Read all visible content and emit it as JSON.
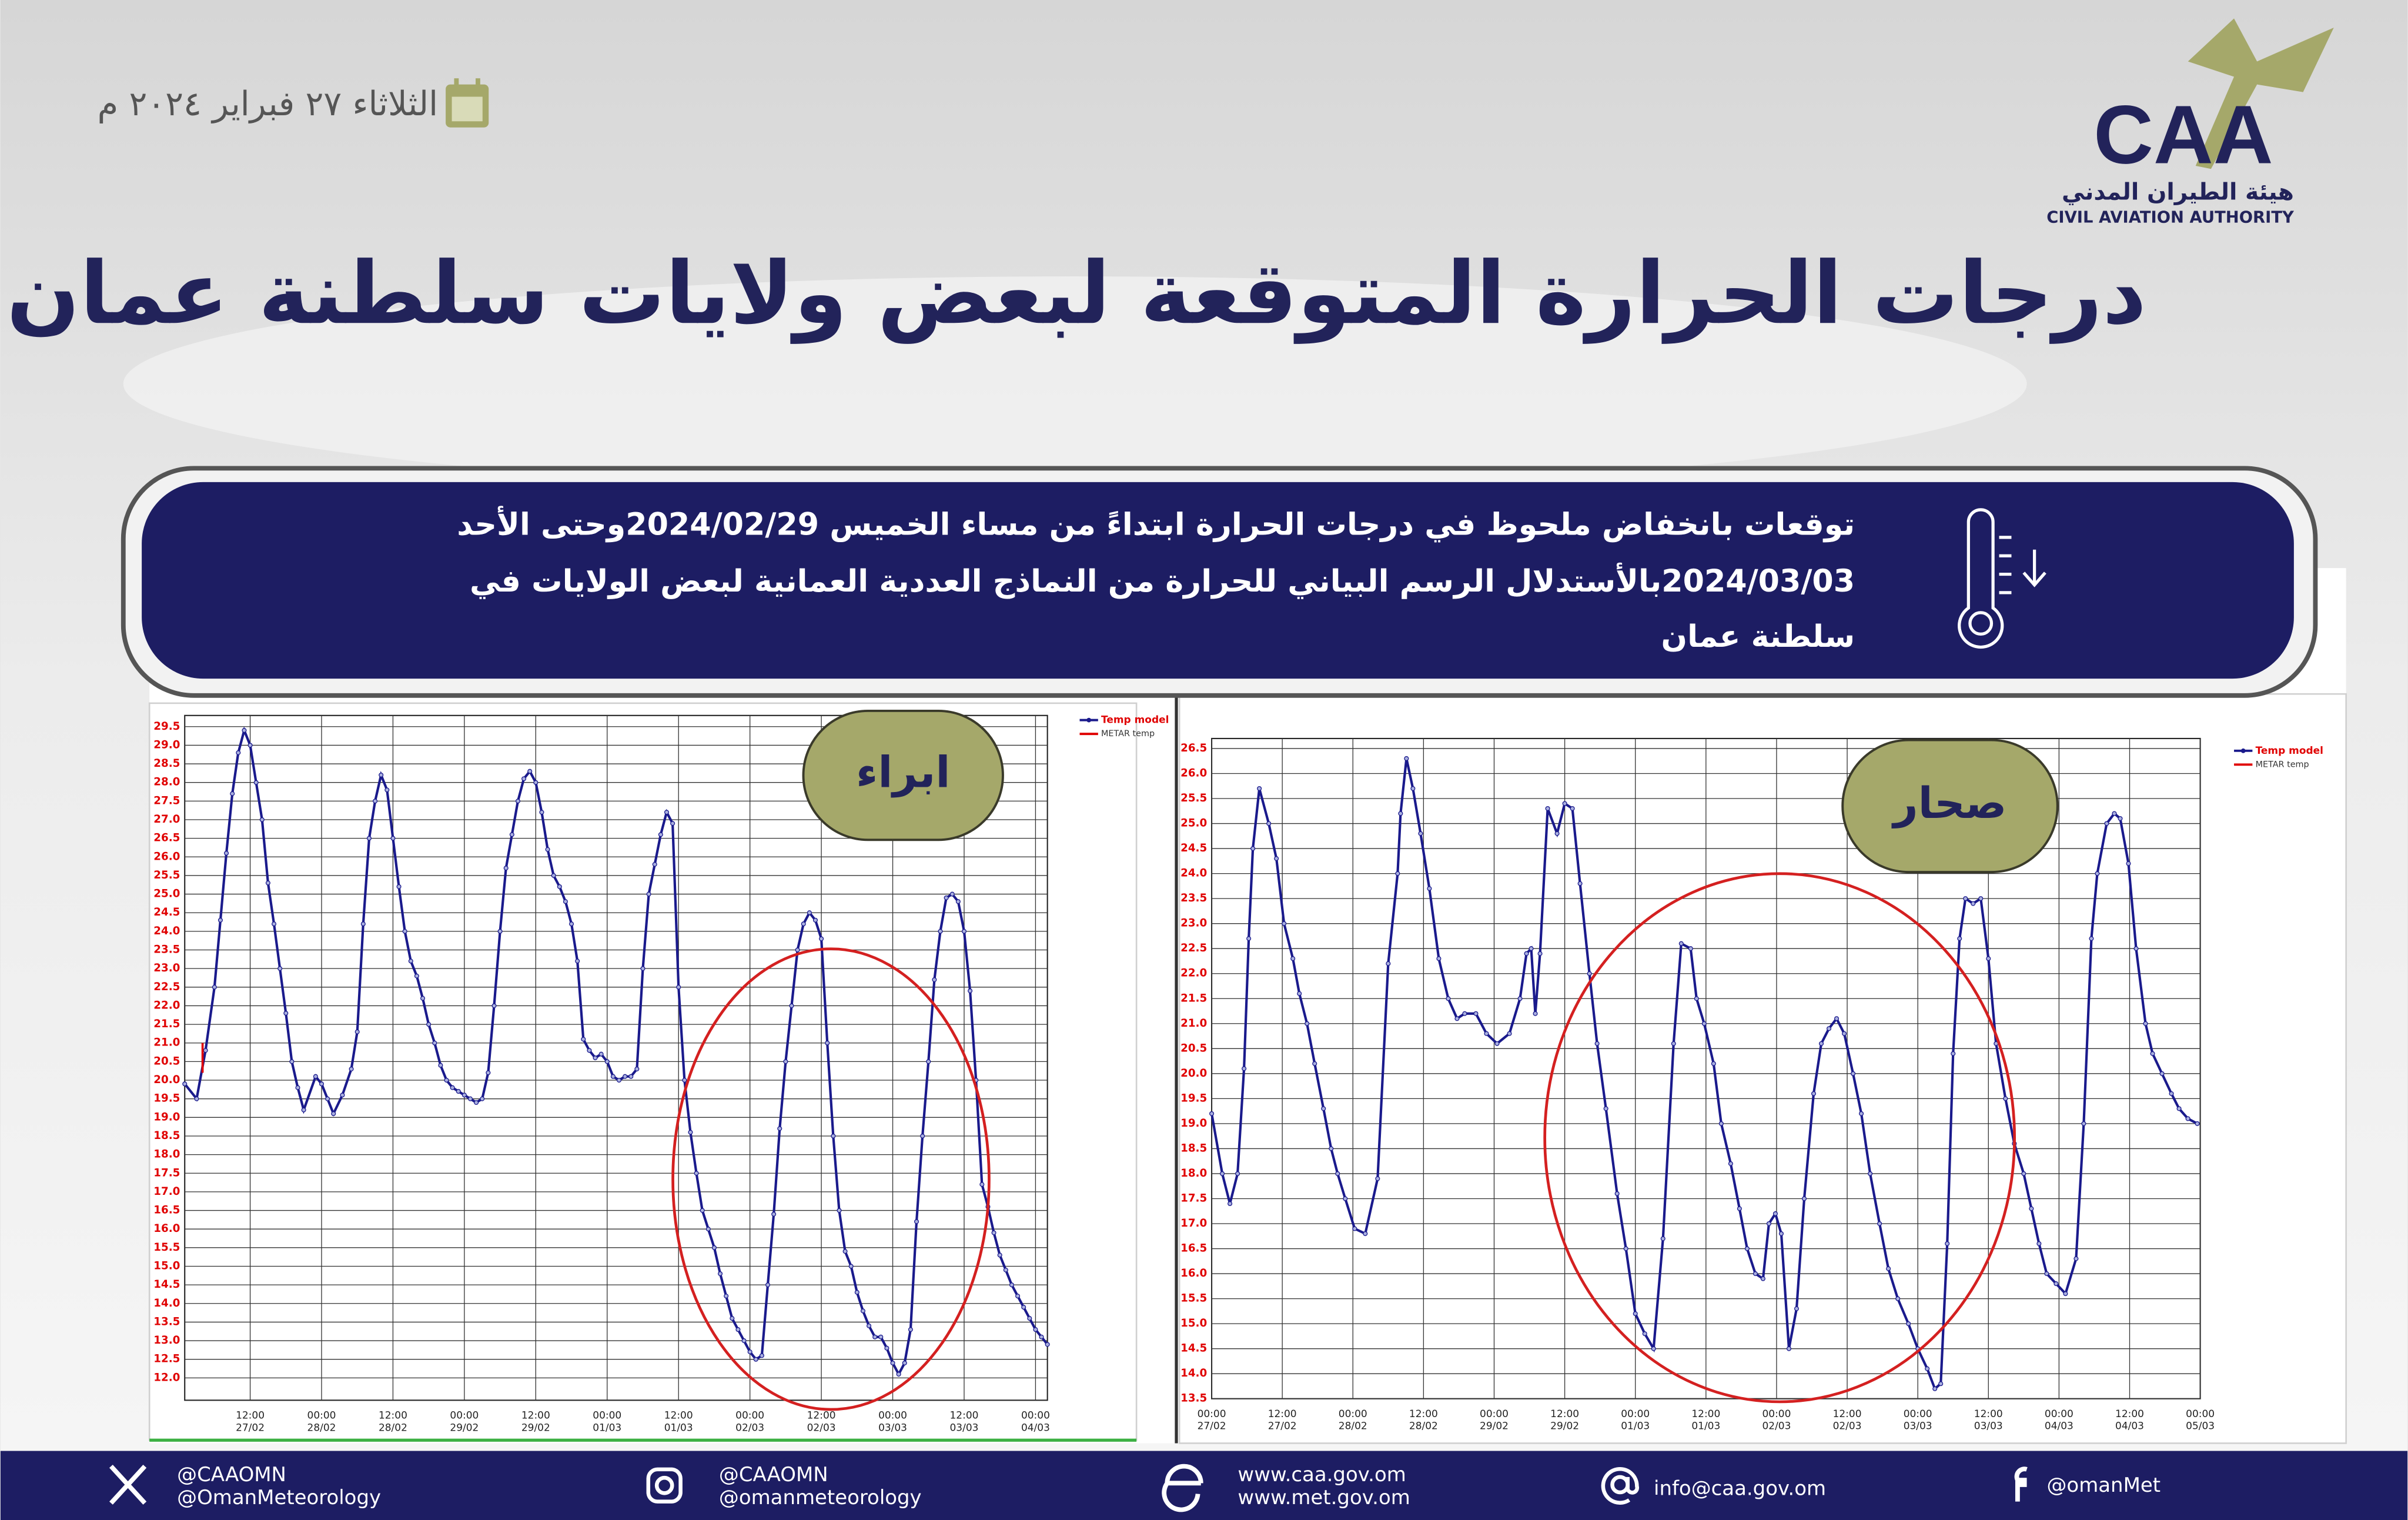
{
  "header": {
    "date": "الثلاثاء ٢٧ فبراير ٢٠٢٤ م",
    "logo": {
      "abbr": "CAA",
      "arabic": "هيئة الطيران المدني",
      "english": "CIVIL AVIATION AUTHORITY"
    },
    "title": "درجات الحرارة المتوقعة لبعض ولايات سلطنة عمان"
  },
  "banner": {
    "lines": [
      "توقعات بانخفاض ملحوظ في درجات الحرارة ابتداءً من مساء الخميس 2024/02/29وحتى الأحد",
      "2024/03/03بالأستدلال الرسم البياني للحرارة من  النماذج العددية العمانية لبعض الولايات في",
      "سلطنة عمان"
    ]
  },
  "chart_data": [
    {
      "type": "line",
      "station": "ابراء",
      "grid": true,
      "xlim": [
        1,
        146
      ],
      "ylim": [
        11.4,
        29.8
      ],
      "xticks": [
        {
          "value": 12,
          "label": "12:00 27/02"
        },
        {
          "value": 24,
          "label": "00:00 28/02"
        },
        {
          "value": 36,
          "label": "12:00 28/02"
        },
        {
          "value": 48,
          "label": "00:00 29/02"
        },
        {
          "value": 60,
          "label": "12:00 29/02"
        },
        {
          "value": 72,
          "label": "00:00 01/03"
        },
        {
          "value": 84,
          "label": "12:00 01/03"
        },
        {
          "value": 96,
          "label": "00:00 02/03"
        },
        {
          "value": 108,
          "label": "12:00 02/03"
        },
        {
          "value": 120,
          "label": "00:00 03/03"
        },
        {
          "value": 132,
          "label": "12:00 03/03"
        },
        {
          "value": 144,
          "label": "00:00 04/03"
        }
      ],
      "yticks": [
        {
          "value": 12,
          "label": "12.0"
        },
        12.5,
        {
          "value": 13,
          "label": "13.0"
        },
        13.5,
        {
          "value": 14,
          "label": "14.0"
        },
        14.5,
        {
          "value": 15,
          "label": "15.0"
        },
        15.5,
        {
          "value": 16,
          "label": "16.0"
        },
        16.5,
        {
          "value": 17,
          "label": "17.0"
        },
        17.5,
        {
          "value": 18,
          "label": "18.0"
        },
        18.5,
        {
          "value": 19,
          "label": "19.0"
        },
        19.5,
        {
          "value": 20,
          "label": "20.0"
        },
        20.5,
        {
          "value": 21,
          "label": "21.0"
        },
        21.5,
        {
          "value": 22,
          "label": "22.0"
        },
        22.5,
        {
          "value": 23,
          "label": "23.0"
        },
        23.5,
        {
          "value": 24,
          "label": "24.0"
        },
        24.5,
        {
          "value": 25,
          "label": "25.0"
        },
        25.5,
        {
          "value": 26,
          "label": "26.0"
        },
        26.5,
        {
          "value": 27,
          "label": "27.0"
        },
        27.5,
        {
          "value": 28,
          "label": "28.0"
        },
        28.5,
        {
          "value": 29,
          "label": "29.0"
        },
        29.5
      ],
      "series": [
        {
          "name": "Temp model",
          "color": "#1a1a8c",
          "x": [
            1,
            3,
            4.5,
            6,
            7,
            8,
            9,
            10,
            11,
            12,
            13,
            14,
            15,
            16,
            17,
            18,
            19,
            20,
            21,
            23,
            24,
            25,
            26,
            27.5,
            29,
            30,
            31,
            32,
            33,
            34,
            35,
            36,
            37,
            38,
            39,
            40,
            41,
            42,
            43,
            44,
            45,
            46,
            47,
            48,
            49,
            50,
            51,
            52,
            53,
            54,
            55,
            56,
            57,
            58,
            59,
            60,
            61,
            62,
            63,
            64,
            65,
            66,
            67,
            68,
            69,
            70,
            71,
            72,
            73,
            74,
            75,
            76,
            77,
            78,
            79,
            80,
            81,
            82,
            83,
            84,
            85,
            86,
            87,
            88,
            89,
            90,
            91,
            92,
            93,
            94,
            95,
            96,
            97,
            98,
            99,
            100,
            101,
            102,
            103,
            104,
            105,
            106,
            107,
            108,
            109,
            110,
            111,
            112,
            113,
            114,
            115,
            116,
            117,
            118,
            119,
            120,
            121,
            122,
            123,
            124,
            125,
            126,
            127,
            128,
            129,
            130,
            131,
            132,
            133,
            134,
            135,
            136,
            137,
            138,
            139,
            140,
            141,
            142,
            143,
            144,
            145,
            146
          ],
          "values": [
            19.9,
            19.5,
            20.8,
            22.5,
            24.3,
            26.1,
            27.7,
            28.8,
            29.4,
            29,
            28,
            27,
            25.3,
            24.2,
            23,
            21.8,
            20.5,
            19.8,
            19.2,
            20.1,
            19.9,
            19.5,
            19.1,
            19.6,
            20.3,
            21.3,
            24.2,
            26.5,
            27.5,
            28.2,
            27.8,
            26.5,
            25.2,
            24,
            23.2,
            22.8,
            22.2,
            21.5,
            21,
            20.4,
            20,
            19.8,
            19.7,
            19.6,
            19.5,
            19.4,
            19.5,
            20.2,
            22,
            24,
            25.7,
            26.6,
            27.5,
            28.1,
            28.3,
            28,
            27.2,
            26.2,
            25.5,
            25.2,
            24.8,
            24.2,
            23.2,
            21.1,
            20.8,
            20.6,
            20.7,
            20.5,
            20.1,
            20,
            20.1,
            20.1,
            20.3,
            23,
            25,
            25.8,
            26.6,
            27.2,
            26.9,
            22.5,
            20,
            18.6,
            17.5,
            16.5,
            16,
            15.5,
            14.8,
            14.2,
            13.6,
            13.3,
            13,
            12.7,
            12.5,
            12.6,
            14.5,
            16.4,
            18.7,
            20.5,
            22,
            23.5,
            24.2,
            24.5,
            24.3,
            23.8,
            21,
            18.5,
            16.5,
            15.4,
            15,
            14.3,
            13.8,
            13.4,
            13.1,
            13.1,
            12.8,
            12.4,
            12.1,
            12.4,
            13.3,
            16.2,
            18.5,
            20.5,
            22.7,
            24,
            24.9,
            25,
            24.8,
            24,
            22.4,
            20,
            17.2,
            16.6,
            15.9,
            15.3,
            14.9,
            14.5,
            14.2,
            13.9,
            13.6,
            13.3,
            13.1,
            12.9
          ]
        },
        {
          "name": "METAR temp",
          "color": "#e00000",
          "x": [
            4,
            4
          ],
          "values": [
            20.2,
            21.0
          ]
        }
      ]
    },
    {
      "type": "line",
      "station": "صحار",
      "grid": true,
      "xlim": [
        0,
        168
      ],
      "ylim": [
        13.5,
        26.7
      ],
      "xticks": [
        {
          "value": 0,
          "label": "00:00 27/02"
        },
        {
          "value": 12,
          "label": "12:00 27/02"
        },
        {
          "value": 24,
          "label": "00:00 28/02"
        },
        {
          "value": 36,
          "label": "12:00 28/02"
        },
        {
          "value": 48,
          "label": "00:00 29/02"
        },
        {
          "value": 60,
          "label": "12:00 29/02"
        },
        {
          "value": 72,
          "label": "00:00 01/03"
        },
        {
          "value": 84,
          "label": "12:00 01/03"
        },
        {
          "value": 96,
          "label": "00:00 02/03"
        },
        {
          "value": 108,
          "label": "12:00 02/03"
        },
        {
          "value": 120,
          "label": "00:00 03/03"
        },
        {
          "value": 132,
          "label": "12:00 03/03"
        },
        {
          "value": 144,
          "label": "00:00 04/03"
        },
        {
          "value": 156,
          "label": "12:00 04/03"
        },
        {
          "value": 168,
          "label": "00:00 05/03"
        }
      ],
      "yticks": [
        13.5,
        {
          "value": 14,
          "label": "14.0"
        },
        14.5,
        {
          "value": 15,
          "label": "15.0"
        },
        15.5,
        {
          "value": 16,
          "label": "16.0"
        },
        16.5,
        {
          "value": 17,
          "label": "17.0"
        },
        17.5,
        {
          "value": 18,
          "label": "18.0"
        },
        18.5,
        {
          "value": 19,
          "label": "19.0"
        },
        19.5,
        {
          "value": 20,
          "label": "20.0"
        },
        20.5,
        {
          "value": 21,
          "label": "21.0"
        },
        21.5,
        {
          "value": 22,
          "label": "22.0"
        },
        22.5,
        {
          "value": 23,
          "label": "23.0"
        },
        23.5,
        {
          "value": 24,
          "label": "24.0"
        },
        24.5,
        {
          "value": 25,
          "label": "25.0"
        },
        25.5,
        {
          "value": 26,
          "label": "26.0"
        },
        26.5
      ],
      "series": [
        {
          "name": "Temp model",
          "color": "#1a1a8c",
          "x": [
            0,
            1.8,
            3.1,
            4.4,
            5.5,
            6.3,
            7,
            8.1,
            9.7,
            11,
            12.3,
            13.8,
            14.9,
            16.2,
            17.5,
            19,
            20.3,
            21.4,
            22.7,
            24.3,
            26.1,
            28.2,
            30,
            31.6,
            32.1,
            33.1,
            34.2,
            35.5,
            37,
            38.6,
            40.2,
            41.7,
            43,
            44.9,
            46.7,
            48.5,
            50.6,
            52.4,
            53.5,
            54.3,
            55,
            55.8,
            57.1,
            58.7,
            60,
            61.3,
            62.6,
            64.2,
            65.5,
            67,
            68.9,
            70.4,
            72,
            73.6,
            75.1,
            76.7,
            78.5,
            79.8,
            81.4,
            82.4,
            83.7,
            85.3,
            86.6,
            88.2,
            89.7,
            91,
            92.4,
            93.7,
            94.7,
            95.8,
            96.8,
            98.1,
            99.4,
            100.7,
            102.3,
            103.6,
            104.9,
            106.2,
            107.5,
            109,
            110.4,
            111.9,
            113.5,
            115,
            116.6,
            118.4,
            120,
            121.6,
            122.9,
            123.9,
            125,
            126,
            127.1,
            128.1,
            129.4,
            130.7,
            132,
            133.3,
            134.9,
            136.4,
            138,
            139.3,
            140.6,
            141.9,
            143.5,
            145.1,
            146.9,
            148.2,
            149.5,
            150.5,
            152.1,
            153.4,
            154.4,
            155.8,
            157.1,
            158.7,
            159.9,
            161.5,
            163.1,
            164.4,
            165.9,
            167.5
          ],
          "values": [
            19.2,
            18,
            17.4,
            18,
            20.1,
            22.7,
            24.5,
            25.7,
            25,
            24.3,
            23,
            22.3,
            21.6,
            21,
            20.2,
            19.3,
            18.5,
            18,
            17.5,
            16.9,
            16.8,
            17.9,
            22.2,
            24,
            25.2,
            26.3,
            25.7,
            24.8,
            23.7,
            22.3,
            21.5,
            21.1,
            21.2,
            21.2,
            20.8,
            20.6,
            20.8,
            21.5,
            22.4,
            22.5,
            21.2,
            22.4,
            25.3,
            24.8,
            25.4,
            25.3,
            23.8,
            22,
            20.6,
            19.3,
            17.6,
            16.5,
            15.2,
            14.8,
            14.5,
            16.7,
            20.6,
            22.6,
            22.5,
            21.5,
            21,
            20.2,
            19,
            18.2,
            17.3,
            16.5,
            16,
            15.9,
            17,
            17.2,
            16.8,
            14.5,
            15.3,
            17.5,
            19.6,
            20.6,
            20.9,
            21.1,
            20.8,
            20,
            19.2,
            18,
            17,
            16.1,
            15.5,
            15,
            14.5,
            14.1,
            13.7,
            13.8,
            16.6,
            20.4,
            22.7,
            23.5,
            23.4,
            23.5,
            22.3,
            20.6,
            19.5,
            18.6,
            18,
            17.3,
            16.6,
            16,
            15.8,
            15.6,
            16.3,
            19,
            22.7,
            24,
            25,
            25.2,
            25.1,
            24.2,
            22.5,
            21,
            20.4,
            20,
            19.6,
            19.3,
            19.1,
            19
          ]
        },
        {
          "name": "METAR temp",
          "color": "#e00000",
          "x": [],
          "values": []
        }
      ]
    }
  ],
  "footer": {
    "items": [
      {
        "lines": [
          "@CAAOMN",
          "@OmanMeteorology"
        ]
      },
      {
        "lines": [
          "@CAAOMN",
          "@omanmeteorology"
        ]
      },
      {
        "lines": [
          "www.caa.gov.om",
          "www.met.gov.om"
        ]
      },
      {
        "lines": [
          "info@caa.gov.om"
        ]
      },
      {
        "lines": [
          "@omanMet"
        ]
      }
    ]
  }
}
